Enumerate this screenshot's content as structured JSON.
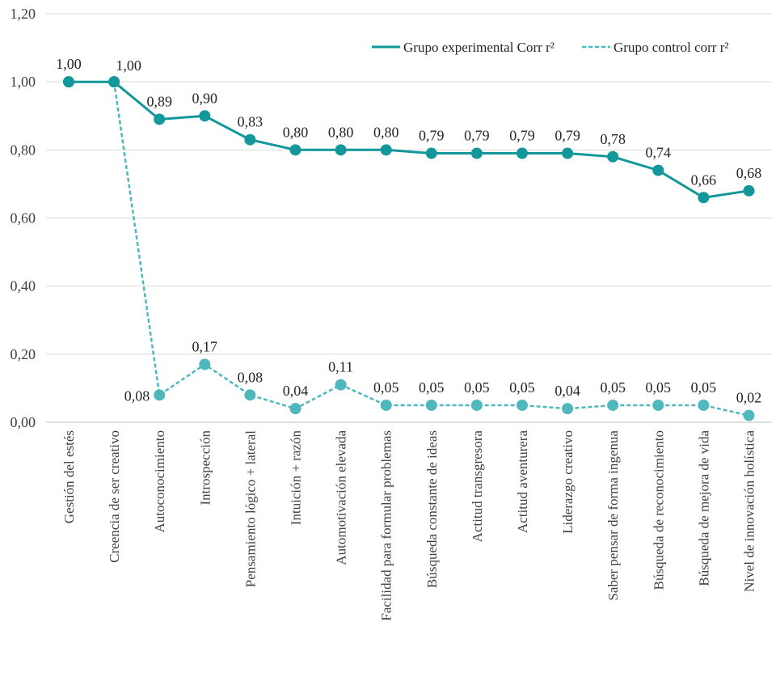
{
  "chart_data": {
    "type": "line",
    "title": "",
    "xlabel": "",
    "ylabel": "",
    "ylim": [
      0,
      1.2
    ],
    "yticks": [
      0,
      0.2,
      0.4,
      0.6,
      0.8,
      1.0,
      1.2
    ],
    "ytick_labels": [
      "0,00",
      "0,20",
      "0,40",
      "0,60",
      "0,80",
      "1,00",
      "1,20"
    ],
    "grid": true,
    "legend_position": "top-right",
    "categories": [
      "Gestión del estés",
      "Creencia de ser creativo",
      "Autoconocimiento",
      "Introspección",
      "Pensamiento lógico + lateral",
      "Intuición + razón",
      "Automotivación elevada",
      "Facilidad para formular problemas",
      "Búsqueda constante de ideas",
      "Actitud transgresora",
      "Actitud aventurera",
      "Liderazgo creativo",
      "Saber pensar de forma ingenua",
      "Búsqueda de reconocimiento",
      "Búsqueda de mejora de vida",
      "Nivel de innovación holística"
    ],
    "series": [
      {
        "name": "Grupo experimental Corr r²",
        "style": "solid",
        "color": "#12979a",
        "values": [
          1.0,
          1.0,
          0.89,
          0.9,
          0.83,
          0.8,
          0.8,
          0.8,
          0.79,
          0.79,
          0.79,
          0.79,
          0.78,
          0.74,
          0.66,
          0.68
        ],
        "labels": [
          "1,00",
          "1,00",
          "0,89",
          "0,90",
          "0,83",
          "0,80",
          "0,80",
          "0,80",
          "0,79",
          "0,79",
          "0,79",
          "0,79",
          "0,78",
          "0,74",
          "0,66",
          "0,68"
        ],
        "show_labels": [
          true,
          true,
          true,
          true,
          true,
          true,
          true,
          true,
          true,
          true,
          true,
          true,
          true,
          true,
          true,
          true
        ]
      },
      {
        "name": "Grupo control corr r²",
        "style": "dashed",
        "color": "#4fb8bc",
        "values": [
          1.0,
          1.0,
          0.08,
          0.17,
          0.08,
          0.04,
          0.11,
          0.05,
          0.05,
          0.05,
          0.05,
          0.04,
          0.05,
          0.05,
          0.05,
          0.02
        ],
        "labels": [
          "1,00",
          "1,00",
          "0,08",
          "0,17",
          "0,08",
          "0,04",
          "0,11",
          "0,05",
          "0,05",
          "0,05",
          "0,05",
          "0,04",
          "0,05",
          "0,05",
          "0,05",
          "0,02"
        ],
        "show_labels": [
          false,
          false,
          true,
          true,
          true,
          true,
          true,
          true,
          true,
          true,
          true,
          true,
          true,
          true,
          true,
          true
        ]
      }
    ]
  }
}
